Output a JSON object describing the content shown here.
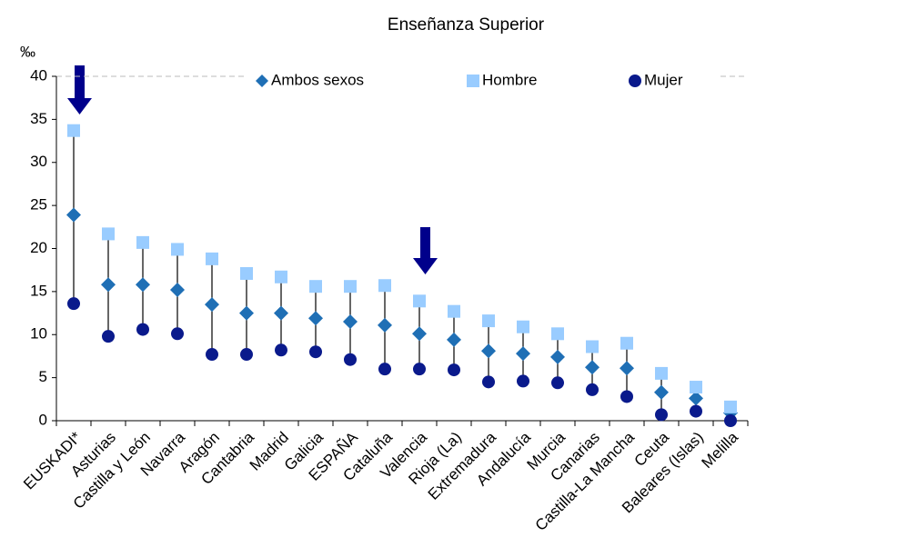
{
  "chart_data": {
    "type": "dot-range",
    "title": "Enseñanza Superior",
    "y_label": "‰",
    "categories": [
      "EUSKADI*",
      "Asturias",
      "Castilla y León",
      "Navarra",
      "Aragón",
      "Cantabria",
      "Madrid",
      "Galicia",
      "ESPAÑA",
      "Cataluña",
      "Valencia",
      "Rioja (La)",
      "Extremadura",
      "Andalucía",
      "Murcia",
      "Canarias",
      "Castilla-La Mancha",
      "Ceuta",
      "Baleares (Islas)",
      "Melilla"
    ],
    "series": [
      {
        "name": "Ambos sexos",
        "color": "#1f6fb5",
        "marker": "diamond",
        "values": [
          23.9,
          15.8,
          15.8,
          15.2,
          13.5,
          12.5,
          12.5,
          11.9,
          11.5,
          11.1,
          10.1,
          9.4,
          8.1,
          7.8,
          7.4,
          6.2,
          6.1,
          3.3,
          2.6,
          0.9
        ]
      },
      {
        "name": "Hombre",
        "color": "#99ccff",
        "marker": "square",
        "values": [
          33.7,
          21.7,
          20.7,
          19.9,
          18.8,
          17.1,
          16.7,
          15.6,
          15.6,
          15.7,
          13.9,
          12.7,
          11.6,
          10.9,
          10.1,
          8.6,
          9.0,
          5.5,
          3.9,
          1.6
        ]
      },
      {
        "name": "Mujer",
        "color": "#0a1a8c",
        "marker": "circle",
        "values": [
          13.6,
          9.8,
          10.6,
          10.1,
          7.7,
          7.7,
          8.2,
          8.0,
          7.1,
          6.0,
          6.0,
          5.9,
          4.5,
          4.6,
          4.4,
          3.6,
          2.8,
          0.7,
          1.1,
          0.0
        ]
      }
    ],
    "ylim": [
      0,
      40
    ],
    "yticks": [
      0,
      5,
      10,
      15,
      20,
      25,
      30,
      35,
      40
    ],
    "grid": false,
    "legend": "top"
  }
}
